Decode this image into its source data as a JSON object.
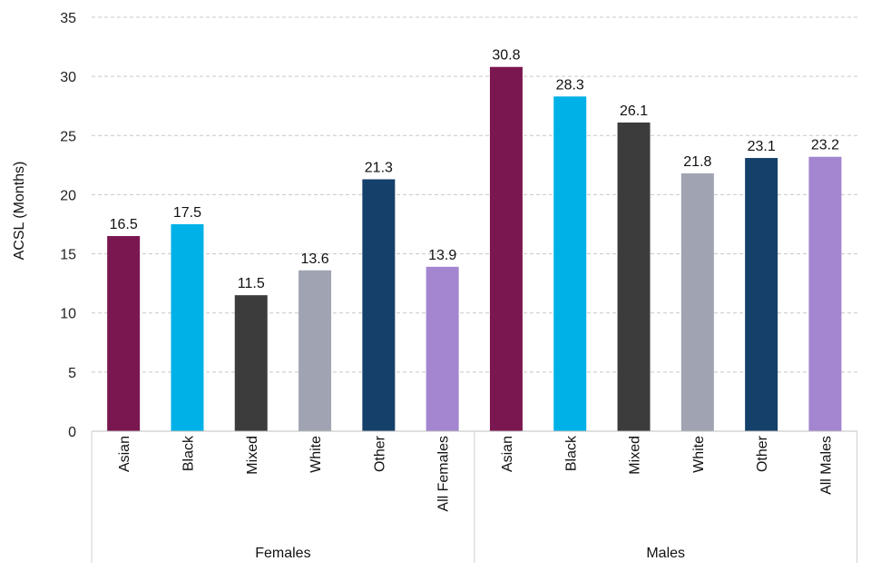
{
  "chart_data": {
    "type": "bar",
    "ylabel": "ACSL (Months)",
    "ylim": [
      0,
      35
    ],
    "yticks": [
      0,
      5,
      10,
      15,
      20,
      25,
      30,
      35
    ],
    "grid": true,
    "groups": [
      {
        "name": "Females",
        "bars": [
          {
            "label": "Asian",
            "value": 16.5,
            "value_label": "16.5",
            "color": "#7B1750"
          },
          {
            "label": "Black",
            "value": 17.5,
            "value_label": "17.5",
            "color": "#00B1E8"
          },
          {
            "label": "Mixed",
            "value": 11.5,
            "value_label": "11.5",
            "color": "#3C3C3C"
          },
          {
            "label": "White",
            "value": 13.6,
            "value_label": "13.6",
            "color": "#A0A4B2"
          },
          {
            "label": "Other",
            "value": 21.3,
            "value_label": "21.3",
            "color": "#14406A"
          },
          {
            "label": "All Females",
            "value": 13.9,
            "value_label": "13.9",
            "color": "#A385D0"
          }
        ]
      },
      {
        "name": "Males",
        "bars": [
          {
            "label": "Asian",
            "value": 30.8,
            "value_label": "30.8",
            "color": "#7B1750"
          },
          {
            "label": "Black",
            "value": 28.3,
            "value_label": "28.3",
            "color": "#00B1E8"
          },
          {
            "label": "Mixed",
            "value": 26.1,
            "value_label": "26.1",
            "color": "#3C3C3C"
          },
          {
            "label": "White",
            "value": 21.8,
            "value_label": "21.8",
            "color": "#A0A4B2"
          },
          {
            "label": "Other",
            "value": 23.1,
            "value_label": "23.1",
            "color": "#14406A"
          },
          {
            "label": "All Males",
            "value": 23.2,
            "value_label": "23.2",
            "color": "#A385D0"
          }
        ]
      }
    ]
  }
}
